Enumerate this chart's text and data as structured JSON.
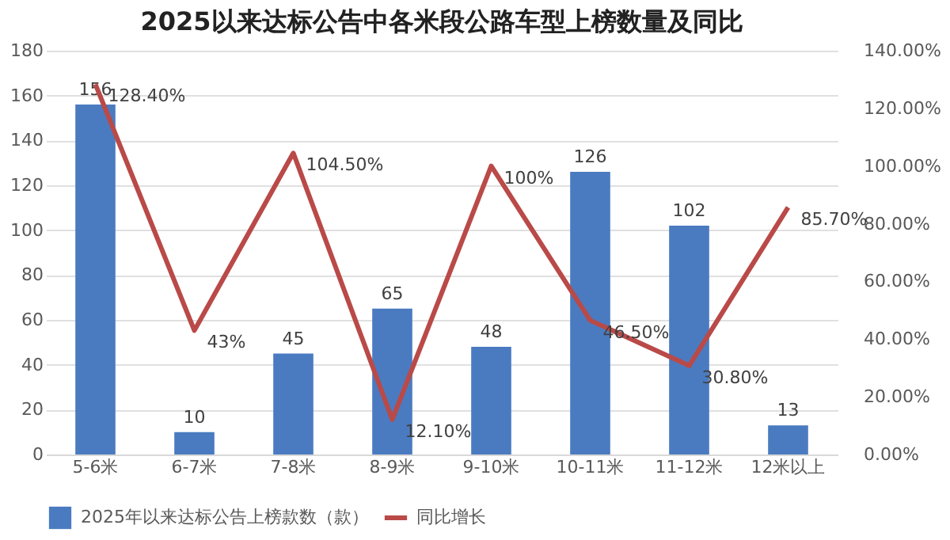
{
  "chart_data": {
    "type": "bar",
    "title": "2025以来达标公告中各米段公路车型上榜数量及同比",
    "categories": [
      "5-6米",
      "6-7米",
      "7-8米",
      "8-9米",
      "9-10米",
      "10-11米",
      "11-12米",
      "12米以上"
    ],
    "series": [
      {
        "name": "2025年以来达标公告上榜款数（款）",
        "color": "#4a7bc1",
        "values": [
          156,
          10,
          45,
          65,
          48,
          126,
          102,
          13
        ],
        "value_labels": [
          "156",
          "10",
          "45",
          "65",
          "48",
          "126",
          "102",
          "13"
        ]
      },
      {
        "name": "同比增长",
        "type": "line",
        "axis": "y2",
        "color": "#b94a48",
        "values": [
          128.4,
          43,
          104.5,
          12.1,
          100,
          46.5,
          30.8,
          85.7
        ],
        "value_labels": [
          "128.40%",
          "43%",
          "104.50%",
          "12.10%",
          "100%",
          "46.50%",
          "30.80%",
          "85.70%"
        ]
      }
    ],
    "ylim": [
      0,
      180
    ],
    "yticks": [
      0,
      20,
      40,
      60,
      80,
      100,
      120,
      140,
      160,
      180
    ],
    "y2lim": [
      0,
      140
    ],
    "y2ticks": [
      {
        "value": 0,
        "label": "0.00%"
      },
      {
        "value": 20,
        "label": "20.00%"
      },
      {
        "value": 40,
        "label": "40.00%"
      },
      {
        "value": 60,
        "label": "60.00%"
      },
      {
        "value": 80,
        "label": "80.00%"
      },
      {
        "value": 100,
        "label": "100.00%"
      },
      {
        "value": 120,
        "label": "120.00%"
      },
      {
        "value": 140,
        "label": "140.00%"
      }
    ],
    "grid": "y",
    "legend": "bottom",
    "marker": "none",
    "line_style": "solid"
  }
}
